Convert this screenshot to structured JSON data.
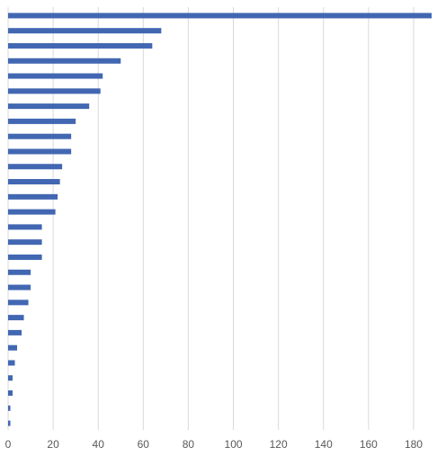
{
  "chart_data": {
    "type": "bar",
    "orientation": "horizontal",
    "title": "",
    "xlabel": "",
    "ylabel": "",
    "xlim": [
      0,
      188
    ],
    "xticks": [
      0,
      20,
      40,
      60,
      80,
      100,
      120,
      140,
      160,
      180
    ],
    "grid": true,
    "legend": "none",
    "bar_color": "#4267B2",
    "grid_color": "#D9D9D9",
    "values": [
      190,
      68,
      64,
      50,
      42,
      41,
      36,
      30,
      28,
      28,
      24,
      23,
      22,
      21,
      15,
      15,
      15,
      10,
      10,
      9,
      7,
      6,
      4,
      3,
      2,
      2,
      1,
      1
    ]
  }
}
